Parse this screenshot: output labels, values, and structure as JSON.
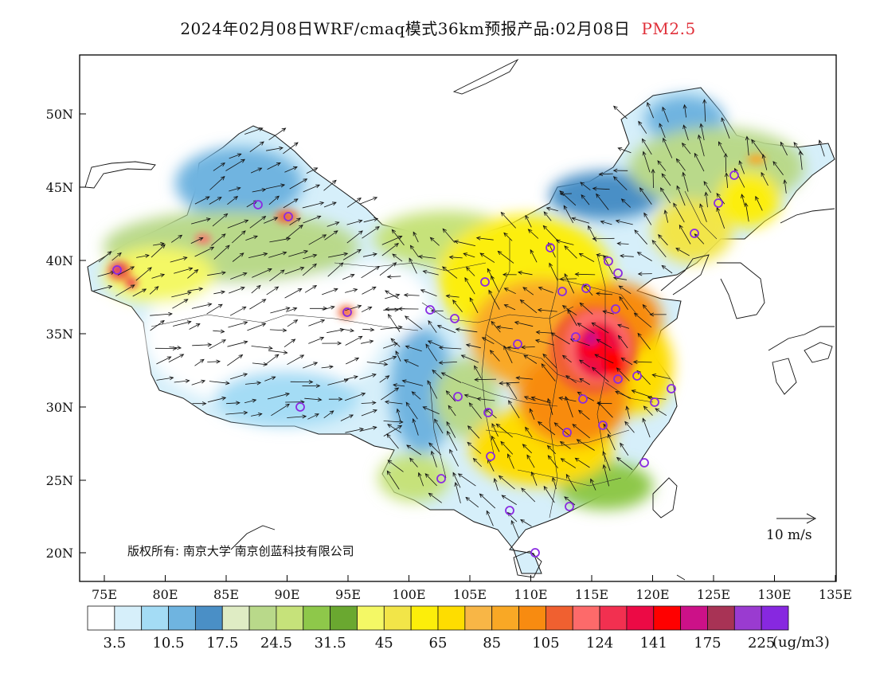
{
  "title": {
    "main": "2024年02月08日WRF/cmaq模式36km预报产品:02月08日",
    "pollutant": "PM2.5",
    "pollutant_color": "#e0303a"
  },
  "map": {
    "lat_ticks": [
      "50N",
      "45N",
      "40N",
      "35N",
      "30N",
      "25N",
      "20N"
    ],
    "lon_ticks": [
      "75E",
      "80E",
      "85E",
      "90E",
      "95E",
      "100E",
      "105E",
      "110E",
      "115E",
      "120E",
      "125E",
      "130E",
      "135E"
    ],
    "copyright": "版权所有: 南京大学  南京创蓝科技有限公司",
    "wind_scale_label": "10 m/s",
    "station_marker_color": "#8a2be2"
  },
  "colorbar": {
    "colors": [
      "#ffffff",
      "#d6effa",
      "#a4dcf5",
      "#6fb4e0",
      "#4a8fc6",
      "#dfecc4",
      "#b9d98a",
      "#c6e27a",
      "#8ec84a",
      "#6aa830",
      "#f4f865",
      "#f2e548",
      "#fcee0a",
      "#fedd00",
      "#f8b646",
      "#f9a825",
      "#f88b10",
      "#f06030",
      "#fd6a6a",
      "#f23050",
      "#ec0a45",
      "#ff0000",
      "#cc1188",
      "#a83355",
      "#9a3bd0",
      "#8728e0"
    ],
    "labels": [
      "3.5",
      "10.5",
      "17.5",
      "24.5",
      "31.5",
      "45",
      "65",
      "85",
      "105",
      "124",
      "141",
      "175",
      "225"
    ],
    "unit": "(ug/m3)"
  }
}
